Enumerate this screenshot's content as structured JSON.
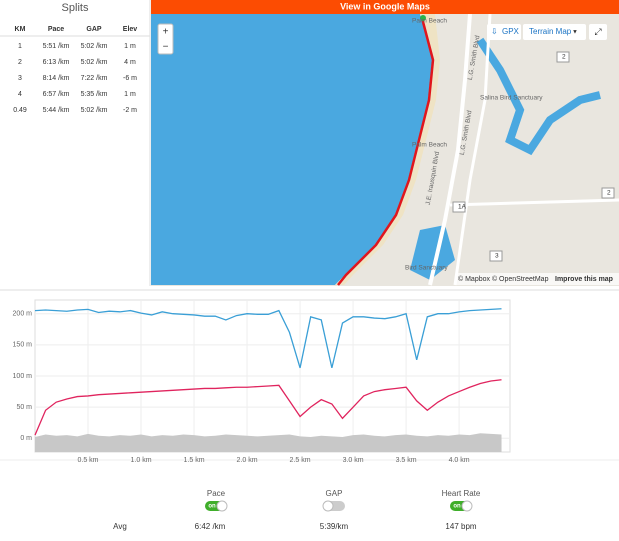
{
  "splits": {
    "title": "Splits",
    "columns": [
      "KM",
      "Pace",
      "GAP",
      "Elev"
    ],
    "rows": [
      [
        "1",
        "5:51 /km",
        "5:02 /km",
        "1 m"
      ],
      [
        "2",
        "6:13 /km",
        "5:02 /km",
        "4 m"
      ],
      [
        "3",
        "8:14 /km",
        "7:22 /km",
        "-6 m"
      ],
      [
        "4",
        "6:57 /km",
        "5:35 /km",
        "1 m"
      ],
      [
        "0.49",
        "5:44 /km",
        "5:02 /km",
        "-2 m"
      ]
    ]
  },
  "map": {
    "banner": "View in Google Maps",
    "zoom_in": "+",
    "zoom_out": "−",
    "gpx": "GPX",
    "layer": "Terrain Map",
    "attribution": "© Mapbox © OpenStreetMap",
    "improve": "Improve this map",
    "labels": [
      "Palm Beach",
      "Palm Beach",
      "L.G. Smith Blvd",
      "L.G. Smith Blvd",
      "J.E. Irausquin Blvd",
      "Salina Bird Sanctuary",
      "Bird Sanctuary",
      "1A",
      "2",
      "2",
      "3"
    ]
  },
  "chart_data": {
    "type": "line",
    "x": [
      0,
      0.1,
      0.2,
      0.3,
      0.4,
      0.5,
      0.6,
      0.7,
      0.8,
      0.9,
      1.0,
      1.1,
      1.2,
      1.3,
      1.4,
      1.5,
      1.6,
      1.7,
      1.8,
      1.9,
      2.0,
      2.1,
      2.2,
      2.3,
      2.4,
      2.5,
      2.6,
      2.7,
      2.8,
      2.9,
      3.0,
      3.1,
      3.2,
      3.3,
      3.4,
      3.5,
      3.6,
      3.7,
      3.8,
      3.9,
      4.0,
      4.1,
      4.2,
      4.3,
      4.4
    ],
    "series": [
      {
        "color": "#3a9fd6",
        "values": [
          205,
          206,
          205,
          204,
          206,
          207,
          202,
          204,
          203,
          205,
          201,
          198,
          203,
          200,
          199,
          198,
          196,
          196,
          190,
          197,
          200,
          199,
          199,
          205,
          170,
          113,
          195,
          190,
          113,
          185,
          195,
          195,
          193,
          192,
          195,
          200,
          126,
          195,
          200,
          200,
          203,
          205,
          206,
          207,
          208
        ]
      },
      {
        "color": "#e0245e",
        "values": [
          5,
          45,
          58,
          63,
          67,
          68,
          70,
          71,
          72,
          73,
          74,
          75,
          76,
          77,
          78,
          79,
          80,
          80,
          81,
          82,
          82,
          83,
          84,
          85,
          60,
          35,
          50,
          62,
          55,
          32,
          50,
          68,
          75,
          78,
          80,
          82,
          60,
          45,
          58,
          68,
          75,
          82,
          88,
          92,
          94
        ]
      },
      {
        "color": "#c8c8c8",
        "area": true,
        "values": [
          2,
          6,
          4,
          5,
          3,
          7,
          4,
          3,
          5,
          4,
          6,
          3,
          5,
          4,
          6,
          5,
          3,
          4,
          6,
          5,
          4,
          3,
          4,
          5,
          6,
          3,
          2,
          4,
          3,
          2,
          5,
          6,
          4,
          3,
          5,
          6,
          4,
          3,
          5,
          4,
          6,
          5,
          8,
          7,
          6
        ]
      }
    ],
    "xlim": [
      0,
      4.48
    ],
    "ylim": [
      -22,
      222
    ],
    "xticks": [
      {
        "value": 0.5,
        "label": "0.5 km"
      },
      {
        "value": 1.0,
        "label": "1.0 km"
      },
      {
        "value": 1.5,
        "label": "1.5 km"
      },
      {
        "value": 2.0,
        "label": "2.0 km"
      },
      {
        "value": 2.5,
        "label": "2.5 km"
      },
      {
        "value": 3.0,
        "label": "3.0 km"
      },
      {
        "value": 3.5,
        "label": "3.5 km"
      },
      {
        "value": 4.0,
        "label": "4.0 km"
      }
    ],
    "yticks": [
      {
        "value": 0,
        "label": "0 m"
      },
      {
        "value": 50,
        "label": "50 m"
      },
      {
        "value": 100,
        "label": "100 m"
      },
      {
        "value": 150,
        "label": "150 m"
      },
      {
        "value": 200,
        "label": "200 m"
      }
    ],
    "grid": true
  },
  "toggles": [
    {
      "label": "Pace",
      "state": "on"
    },
    {
      "label": "GAP",
      "state": "off"
    },
    {
      "label": "Heart Rate",
      "state": "on"
    }
  ],
  "avg": [
    "Avg",
    "6:42 /km",
    "5:39/km",
    "147 bpm"
  ]
}
